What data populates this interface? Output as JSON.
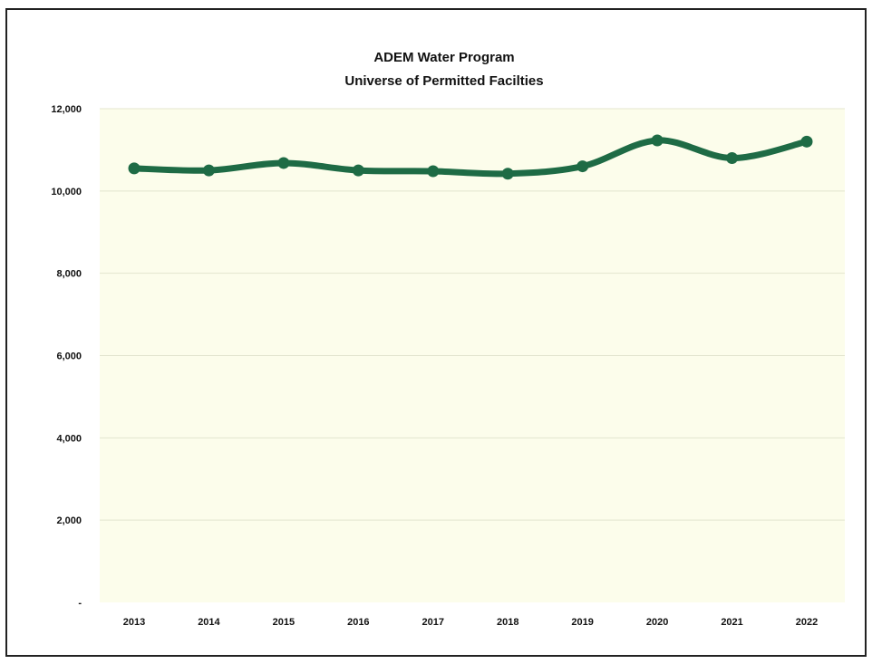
{
  "chart_data": {
    "type": "line",
    "title": "ADEM Water Program",
    "subtitle": "Universe of Permitted Facilties",
    "xlabel": "",
    "ylabel": "",
    "categories": [
      "2013",
      "2014",
      "2015",
      "2016",
      "2017",
      "2018",
      "2019",
      "2020",
      "2021",
      "2022"
    ],
    "series": [
      {
        "values": [
          10550,
          10500,
          10680,
          10500,
          10480,
          10420,
          10600,
          11230,
          10800,
          11200
        ],
        "color": "#1e6b45"
      }
    ],
    "ylim": [
      0,
      12000
    ],
    "yticks": [
      {
        "value": 0,
        "label": "-"
      },
      {
        "value": 2000,
        "label": "2,000"
      },
      {
        "value": 4000,
        "label": "4,000"
      },
      {
        "value": 6000,
        "label": "6,000"
      },
      {
        "value": 8000,
        "label": "8,000"
      },
      {
        "value": 10000,
        "label": "10,000"
      },
      {
        "value": 12000,
        "label": "12,000"
      }
    ],
    "grid": true,
    "legend": "none",
    "colors": {
      "plot_background": "#fcfdeb",
      "gridline": "#e3e5cf",
      "line": "#1e6b45"
    }
  }
}
